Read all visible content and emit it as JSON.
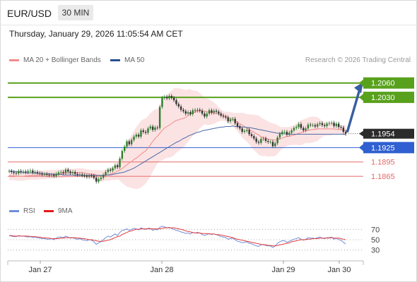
{
  "header": {
    "pair": "EUR/USD",
    "timeframe": "30 MIN",
    "datetime": "Thursday, January 29, 2026 11:05:54 AM CET"
  },
  "legend": {
    "bollinger": "MA 20 + Bollinger Bands",
    "ma50": "MA 50",
    "credit": "Research © 2026 Trading Central"
  },
  "rsi_legend": {
    "rsi": "RSI",
    "ma9": "9MA"
  },
  "colors": {
    "resistance": "#58a11c",
    "support": "#2f5fd1",
    "target_line": "#e36a6a",
    "bollinger": "#f38b8b",
    "ma50": "#4b69a8",
    "arrow": "#3a5fa0",
    "candle_up": "#2d7d2d",
    "candle_down": "#333333",
    "rsi": "#6f8fd8",
    "rsi_ma": "#e23b3b"
  },
  "chart_data": [
    {
      "type": "candlestick",
      "title": "EUR/USD 30 MIN",
      "ylim": [
        1.1818,
        1.2092
      ],
      "x_ticks": [
        "Jan 27",
        "Jan 28",
        "Jan 29",
        "Jan 30"
      ],
      "current_price": "1.1954",
      "levels": [
        {
          "label": "1.2060",
          "value": 1.206,
          "kind": "resistance"
        },
        {
          "label": "1.2030",
          "value": 1.203,
          "kind": "resistance"
        },
        {
          "label": "1.1925",
          "value": 1.1925,
          "kind": "support"
        },
        {
          "label": "1.1895",
          "value": 1.1895,
          "kind": "target"
        },
        {
          "label": "1.1865",
          "value": 1.1865,
          "kind": "target"
        }
      ],
      "close": [
        1.1876,
        1.1874,
        1.1872,
        1.1871,
        1.1876,
        1.1874,
        1.1875,
        1.1873,
        1.1876,
        1.1877,
        1.1873,
        1.1874,
        1.1872,
        1.1871,
        1.1869,
        1.187,
        1.1868,
        1.1867,
        1.1868,
        1.1866,
        1.187,
        1.1873,
        1.1874,
        1.1872,
        1.1879,
        1.1875,
        1.1872,
        1.1874,
        1.187,
        1.1868,
        1.1869,
        1.1867,
        1.1866,
        1.1864,
        1.1867,
        1.1866,
        1.1862,
        1.1854,
        1.1859,
        1.1862,
        1.1868,
        1.1874,
        1.1879,
        1.1877,
        1.1882,
        1.1888,
        1.1884,
        1.1902,
        1.1918,
        1.1927,
        1.1938,
        1.1932,
        1.1941,
        1.1948,
        1.1952,
        1.1948,
        1.1961,
        1.1958,
        1.1956,
        1.1965,
        1.1969,
        1.1962,
        1.1967,
        1.1966,
        1.201,
        1.2029,
        1.2031,
        1.2028,
        1.2033,
        1.2029,
        1.2024,
        1.2016,
        1.2011,
        1.2004,
        1.2001,
        1.1996,
        1.1999,
        1.1995,
        1.2003,
        1.2002,
        1.2004,
        1.2002,
        1.1996,
        1.199,
        1.1996,
        1.2003,
        1.1998,
        1.2002,
        1.2,
        1.1996,
        1.1992,
        1.199,
        1.1988,
        1.198,
        1.1984,
        1.1985,
        1.1976,
        1.1969,
        1.1965,
        1.1958,
        1.196,
        1.1962,
        1.1953,
        1.1949,
        1.1944,
        1.1937,
        1.1935,
        1.1943,
        1.1944,
        1.1939,
        1.1937,
        1.1937,
        1.1928,
        1.1934,
        1.1946,
        1.1954,
        1.1958,
        1.1958,
        1.1952,
        1.1956,
        1.1961,
        1.1966,
        1.1968,
        1.1974,
        1.1966,
        1.1961,
        1.1965,
        1.1973,
        1.1972,
        1.1972,
        1.1969,
        1.1974,
        1.1976,
        1.1972,
        1.197,
        1.1975,
        1.1976,
        1.1977,
        1.197,
        1.1975,
        1.1968,
        1.1967,
        1.1958,
        1.1954
      ],
      "ma20": [
        1.1867,
        1.1866,
        1.1866,
        1.1865,
        1.1865,
        1.1865,
        1.1865,
        1.1866,
        1.1866,
        1.1867,
        1.1867,
        1.1867,
        1.1867,
        1.1868,
        1.1868,
        1.1868,
        1.1869,
        1.1869,
        1.1869,
        1.1869,
        1.187,
        1.187,
        1.187,
        1.1871,
        1.1871,
        1.1872,
        1.1872,
        1.1872,
        1.1872,
        1.1873,
        1.1873,
        1.1873,
        1.1872,
        1.1871,
        1.187,
        1.1869,
        1.1869,
        1.1868,
        1.1867,
        1.1866,
        1.1866,
        1.1868,
        1.1868,
        1.187,
        1.1871,
        1.1873,
        1.1876,
        1.1878,
        1.1881,
        1.1885,
        1.1889,
        1.1893,
        1.1896,
        1.19,
        1.1903,
        1.1907,
        1.1911,
        1.1915,
        1.1918,
        1.1924,
        1.1931,
        1.1938,
        1.1944,
        1.1949,
        1.1955,
        1.1961,
        1.1966,
        1.1969,
        1.1972,
        1.1975,
        1.1979,
        1.1982,
        1.1983,
        1.1985,
        1.1986,
        1.1988,
        1.1992,
        1.1995,
        1.1997,
        1.1999,
        1.2001,
        1.2002,
        1.2002,
        1.2001,
        1.2,
        1.1999,
        1.1998,
        1.1997,
        1.1996,
        1.1995,
        1.1993,
        1.1991,
        1.199,
        1.1988,
        1.1986,
        1.1984,
        1.1981,
        1.1978,
        1.1975,
        1.1972,
        1.1969,
        1.1966,
        1.1963,
        1.196,
        1.1957,
        1.1954,
        1.1951,
        1.1948,
        1.1946,
        1.1945,
        1.1943,
        1.1942,
        1.1941,
        1.1941,
        1.1942,
        1.1943,
        1.1945,
        1.1947,
        1.1948,
        1.1949,
        1.195,
        1.1951,
        1.1953,
        1.1955,
        1.1956,
        1.1958,
        1.196,
        1.1961,
        1.1962,
        1.1963,
        1.1963,
        1.1964,
        1.1964,
        1.1964,
        1.1964,
        1.1964,
        1.1964,
        1.1964,
        1.1964,
        1.1963,
        1.1963,
        1.1962,
        1.1961,
        1.1961
      ],
      "ma50": [
        1.1876,
        1.1876,
        1.1875,
        1.1875,
        1.1874,
        1.1874,
        1.1873,
        1.1873,
        1.1872,
        1.1872,
        1.1872,
        1.1872,
        1.1871,
        1.1871,
        1.1871,
        1.187,
        1.187,
        1.187,
        1.187,
        1.1869,
        1.1869,
        1.1869,
        1.1869,
        1.1868,
        1.1868,
        1.1868,
        1.1868,
        1.1868,
        1.1867,
        1.1867,
        1.1867,
        1.1867,
        1.1867,
        1.1867,
        1.1867,
        1.1867,
        1.1867,
        1.1867,
        1.1867,
        1.1867,
        1.1867,
        1.1868,
        1.1868,
        1.1868,
        1.1869,
        1.187,
        1.1871,
        1.1872,
        1.1873,
        1.1874,
        1.1876,
        1.1878,
        1.188,
        1.1882,
        1.1885,
        1.1888,
        1.1891,
        1.1894,
        1.1897,
        1.19,
        1.1903,
        1.1906,
        1.1909,
        1.1912,
        1.1915,
        1.1918,
        1.1921,
        1.1924,
        1.1927,
        1.193,
        1.1933,
        1.1936,
        1.1938,
        1.1941,
        1.1944,
        1.1946,
        1.1949,
        1.1951,
        1.1953,
        1.1955,
        1.1957,
        1.1958,
        1.196,
        1.1961,
        1.1962,
        1.1963,
        1.1964,
        1.1965,
        1.1966,
        1.1967,
        1.1968,
        1.1968,
        1.1969,
        1.1969,
        1.1969,
        1.197,
        1.1969,
        1.1969,
        1.1969,
        1.1968,
        1.1968,
        1.1967,
        1.1967,
        1.1966,
        1.1965,
        1.1964,
        1.1963,
        1.1962,
        1.1961,
        1.196,
        1.1959,
        1.1958,
        1.1957,
        1.1956,
        1.1955,
        1.1955,
        1.1954,
        1.1954,
        1.1953,
        1.1953,
        1.1953,
        1.1953,
        1.1953,
        1.1953,
        1.1953,
        1.1953,
        1.1953,
        1.1953,
        1.1953,
        1.1953,
        1.1953,
        1.1953,
        1.1953,
        1.1953,
        1.1953,
        1.1953,
        1.1953,
        1.1953,
        1.1953,
        1.1953,
        1.1953,
        1.1953,
        1.1953,
        1.1953
      ]
    },
    {
      "type": "line",
      "title": "RSI",
      "ylim": [
        20,
        80
      ],
      "y_ticks": [
        70,
        50,
        30
      ],
      "series": [
        {
          "name": "RSI",
          "values": [
            58,
            57,
            56,
            56,
            58,
            57,
            57,
            56,
            55,
            56,
            54,
            55,
            54,
            53,
            52,
            52,
            51,
            51,
            52,
            50,
            53,
            55,
            55,
            54,
            57,
            55,
            53,
            54,
            52,
            51,
            52,
            50,
            49,
            48,
            50,
            49,
            46,
            41,
            44,
            46,
            50,
            54,
            57,
            55,
            58,
            61,
            58,
            64,
            68,
            69,
            71,
            68,
            70,
            72,
            71,
            69,
            73,
            71,
            70,
            72,
            72,
            68,
            70,
            69,
            74,
            76,
            75,
            73,
            74,
            72,
            70,
            68,
            67,
            65,
            64,
            62,
            63,
            61,
            64,
            63,
            64,
            63,
            60,
            58,
            60,
            62,
            60,
            61,
            60,
            58,
            56,
            55,
            54,
            51,
            52,
            53,
            50,
            47,
            46,
            44,
            45,
            46,
            43,
            42,
            40,
            38,
            37,
            40,
            41,
            39,
            38,
            38,
            35,
            38,
            43,
            46,
            48,
            48,
            45,
            47,
            49,
            51,
            52,
            54,
            51,
            49,
            51,
            54,
            53,
            53,
            52,
            54,
            55,
            53,
            52,
            54,
            54,
            55,
            51,
            53,
            50,
            49,
            45,
            42
          ]
        },
        {
          "name": "9MA",
          "values": [
            58,
            58,
            57,
            57,
            57,
            57,
            57,
            57,
            57,
            56,
            56,
            56,
            55,
            55,
            54,
            54,
            53,
            53,
            52,
            52,
            52,
            52,
            53,
            53,
            54,
            54,
            54,
            54,
            54,
            53,
            53,
            52,
            52,
            51,
            50,
            50,
            49,
            48,
            47,
            47,
            47,
            48,
            49,
            50,
            52,
            54,
            56,
            57,
            60,
            62,
            64,
            66,
            67,
            69,
            70,
            70,
            71,
            71,
            71,
            71,
            71,
            71,
            71,
            71,
            71,
            72,
            73,
            73,
            73,
            73,
            73,
            72,
            71,
            70,
            69,
            67,
            66,
            65,
            64,
            63,
            63,
            63,
            62,
            62,
            62,
            61,
            61,
            61,
            60,
            60,
            59,
            58,
            57,
            56,
            55,
            54,
            52,
            51,
            50,
            49,
            48,
            47,
            46,
            45,
            44,
            43,
            42,
            41,
            40,
            40,
            39,
            39,
            38,
            38,
            39,
            40,
            41,
            42,
            43,
            44,
            46,
            47,
            48,
            49,
            50,
            50,
            50,
            51,
            51,
            52,
            52,
            52,
            53,
            53,
            53,
            53,
            53,
            54,
            53,
            53,
            53,
            52,
            51,
            50
          ]
        }
      ]
    }
  ]
}
